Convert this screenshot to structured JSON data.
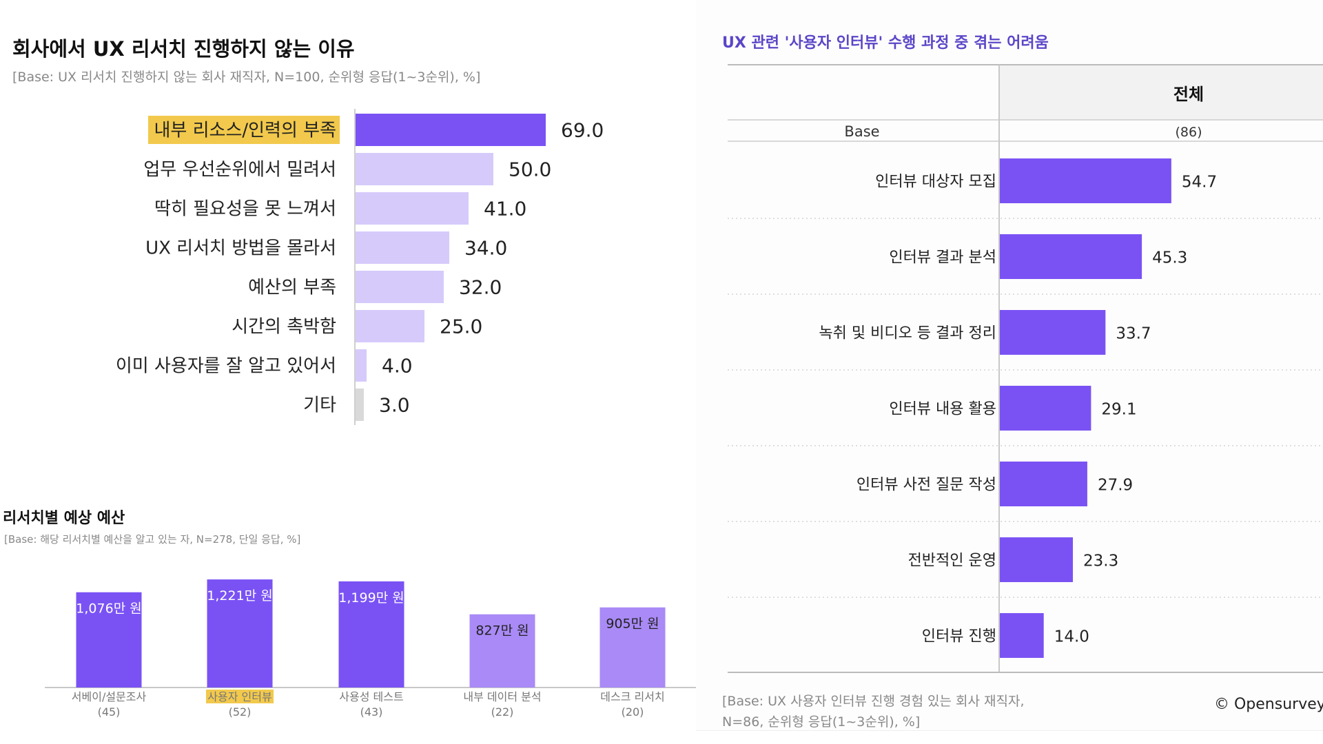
{
  "colors": {
    "accent": "#7a52f4",
    "light": "#d6cafb",
    "gray": "#d9d9d9",
    "highlight": "#f2c94c",
    "c2_light": "#a98af6",
    "c3_title": "#5b46c8"
  },
  "chart1": {
    "title": "회사에서 UX 리서치 진행하지 않는 이유",
    "subtitle": "[Base: UX 리서치 진행하지 않는 회사 재직자, N=100, 순위형 응답(1~3순위), %]"
  },
  "chart2": {
    "title": "리서치별 예상 예산",
    "subtitle": "[Base: 해당 리서치별 예산을 알고 있는 자, N=278, 단일 응답, %]"
  },
  "chart3": {
    "title": "UX 관련 '사용자 인터뷰' 수행 과정 중 겪는 어려움",
    "column_header": "전체",
    "base_label": "Base",
    "base_value": "(86)",
    "footnote_line1": "[Base: UX 사용자 인터뷰 진행 경험 있는 회사 재직자,",
    "footnote_line2": "N=86, 순위형 응답(1~3순위), %]"
  },
  "brand": "© Opensurvey",
  "chart_data": [
    {
      "type": "bar",
      "orientation": "horizontal",
      "title": "회사에서 UX 리서치 진행하지 않는 이유",
      "categories": [
        "내부 리소스/인력의 부족",
        "업무 우선순위에서 밀려서",
        "딱히 필요성을 못 느껴서",
        "UX 리서치 방법을 몰라서",
        "예산의 부족",
        "시간의 촉박함",
        "이미 사용자를 잘 알고 있어서",
        "기타"
      ],
      "values": [
        69.0,
        50.0,
        41.0,
        34.0,
        32.0,
        25.0,
        4.0,
        3.0
      ],
      "value_labels": [
        "69.0",
        "50.0",
        "41.0",
        "34.0",
        "32.0",
        "25.0",
        "4.0",
        "3.0"
      ],
      "highlight_index": 0,
      "unit": "%"
    },
    {
      "type": "bar",
      "orientation": "vertical",
      "title": "리서치별 예상 예산",
      "categories": [
        "서베이/설문조사",
        "사용자 인터뷰",
        "사용성 테스트",
        "내부 데이터 분석",
        "데스크 리서치"
      ],
      "bases": [
        "(45)",
        "(52)",
        "(43)",
        "(22)",
        "(20)"
      ],
      "values": [
        1076,
        1221,
        1199,
        827,
        905
      ],
      "value_labels": [
        "1,076만 원",
        "1,221만 원",
        "1,199만 원",
        "827만 원",
        "905만 원"
      ],
      "highlight_index": 1,
      "unit": "만 원"
    },
    {
      "type": "bar",
      "orientation": "horizontal",
      "title": "UX 관련 '사용자 인터뷰' 수행 과정 중 겪는 어려움",
      "categories": [
        "인터뷰 대상자 모집",
        "인터뷰 결과 분석",
        "녹취 및 비디오 등 결과 정리",
        "인터뷰 내용 활용",
        "인터뷰 사전 질문 작성",
        "전반적인 운영",
        "인터뷰 진행"
      ],
      "values": [
        54.7,
        45.3,
        33.7,
        29.1,
        27.9,
        23.3,
        14.0
      ],
      "value_labels": [
        "54.7",
        "45.3",
        "33.7",
        "29.1",
        "27.9",
        "23.3",
        "14.0"
      ],
      "unit": "%"
    }
  ]
}
